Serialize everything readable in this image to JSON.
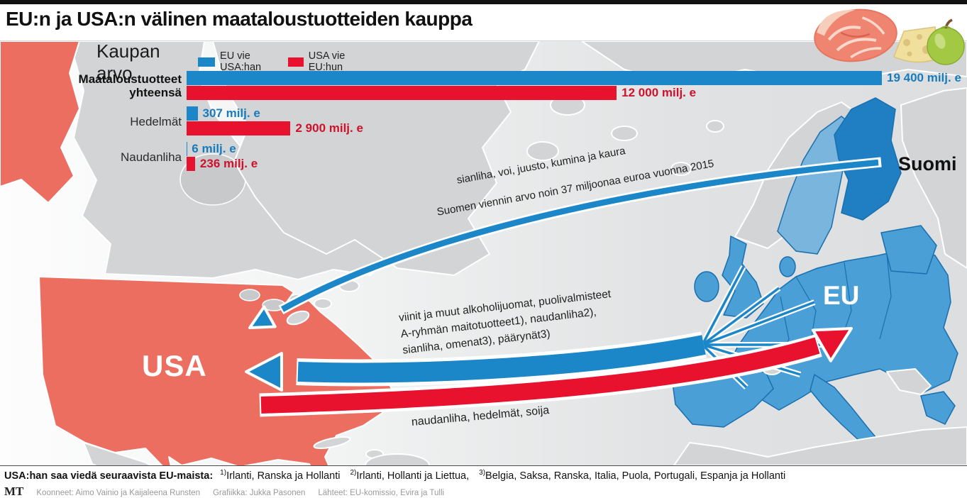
{
  "title": "EU:n ja USA:n välinen maataloustuotteiden kauppa",
  "header_icons": [
    "meat-icon",
    "cheese-icon",
    "apple-icon"
  ],
  "chart_data": {
    "type": "bar",
    "orientation": "horizontal",
    "title": "Kaupan arvo",
    "unit": "milj. e",
    "xmax": 19400,
    "grid": false,
    "legend_position": "top",
    "categories": [
      "Maataloustuotteet\nyhteensä",
      "Hedelmät",
      "Naudanliha"
    ],
    "series": [
      {
        "name": "EU vie USA:han",
        "color": "#1b86c8",
        "values": [
          19400,
          307,
          6
        ],
        "value_labels": [
          "19 400 milj. e",
          "307 milj. e",
          "6 milj. e"
        ]
      },
      {
        "name": "USA vie EU:hun",
        "color": "#e8112e",
        "values": [
          12000,
          2900,
          236
        ],
        "value_labels": [
          "12 000 milj. e",
          "2 900 milj. e",
          "236 milj. e"
        ]
      }
    ]
  },
  "map": {
    "region_labels": {
      "usa": "USA",
      "eu": "EU",
      "finland": "Suomi"
    },
    "flows": [
      {
        "id": "finland-to-usa",
        "from": "Suomi",
        "to": "USA",
        "color": "#1b86c8",
        "lines": [
          "sianliha, voi, juusto, kumina ja kaura",
          "Suomen viennin arvo noin 37 miljoonaa euroa vuonna 2015"
        ]
      },
      {
        "id": "eu-to-usa",
        "from": "EU",
        "to": "USA",
        "color": "#1b86c8",
        "lines": [
          "viinit ja muut alkoholijuomat, puolivalmisteet",
          "A-ryhmän maitotuotteet1),  naudanliha2),",
          "sianliha, omenat3), päärynät3)"
        ]
      },
      {
        "id": "usa-to-eu",
        "from": "USA",
        "to": "EU",
        "color": "#e8112e",
        "lines": [
          "naudanliha, hedelmät, soija"
        ]
      }
    ]
  },
  "footer": {
    "note_intro": "USA:han saa viedä seuraavista EU-maista:",
    "notes": [
      {
        "sup": "1)",
        "text": "Irlanti, Ranska ja Hollanti"
      },
      {
        "sup": "2)",
        "text": "Irlanti, Hollanti ja Liettua,"
      },
      {
        "sup": "3)",
        "text": "Belgia, Saksa, Ranska, Italia, Puola, Portugali, Espanja ja Hollanti"
      }
    ],
    "logo": "MT",
    "credits": [
      "Koonneet: Aimo Vainio ja Kaijaleena Runsten",
      "Grafiikka: Jukka Pasonen",
      "Lähteet: EU-komissio, Evira ja Tulli"
    ]
  },
  "colors": {
    "eu_blue": "#1b86c8",
    "eu_map_blue": "#4a9fd6",
    "eu_border": "#1a6fae",
    "finland_blue": "#1f7fc2",
    "sweden_blue": "#7ab5de",
    "usa_red": "#e8112e",
    "usa_map_salmon": "#ec6e60",
    "land_gray": "#d2d4d5",
    "value_blue": "#177bbd",
    "value_red": "#d0112b"
  }
}
